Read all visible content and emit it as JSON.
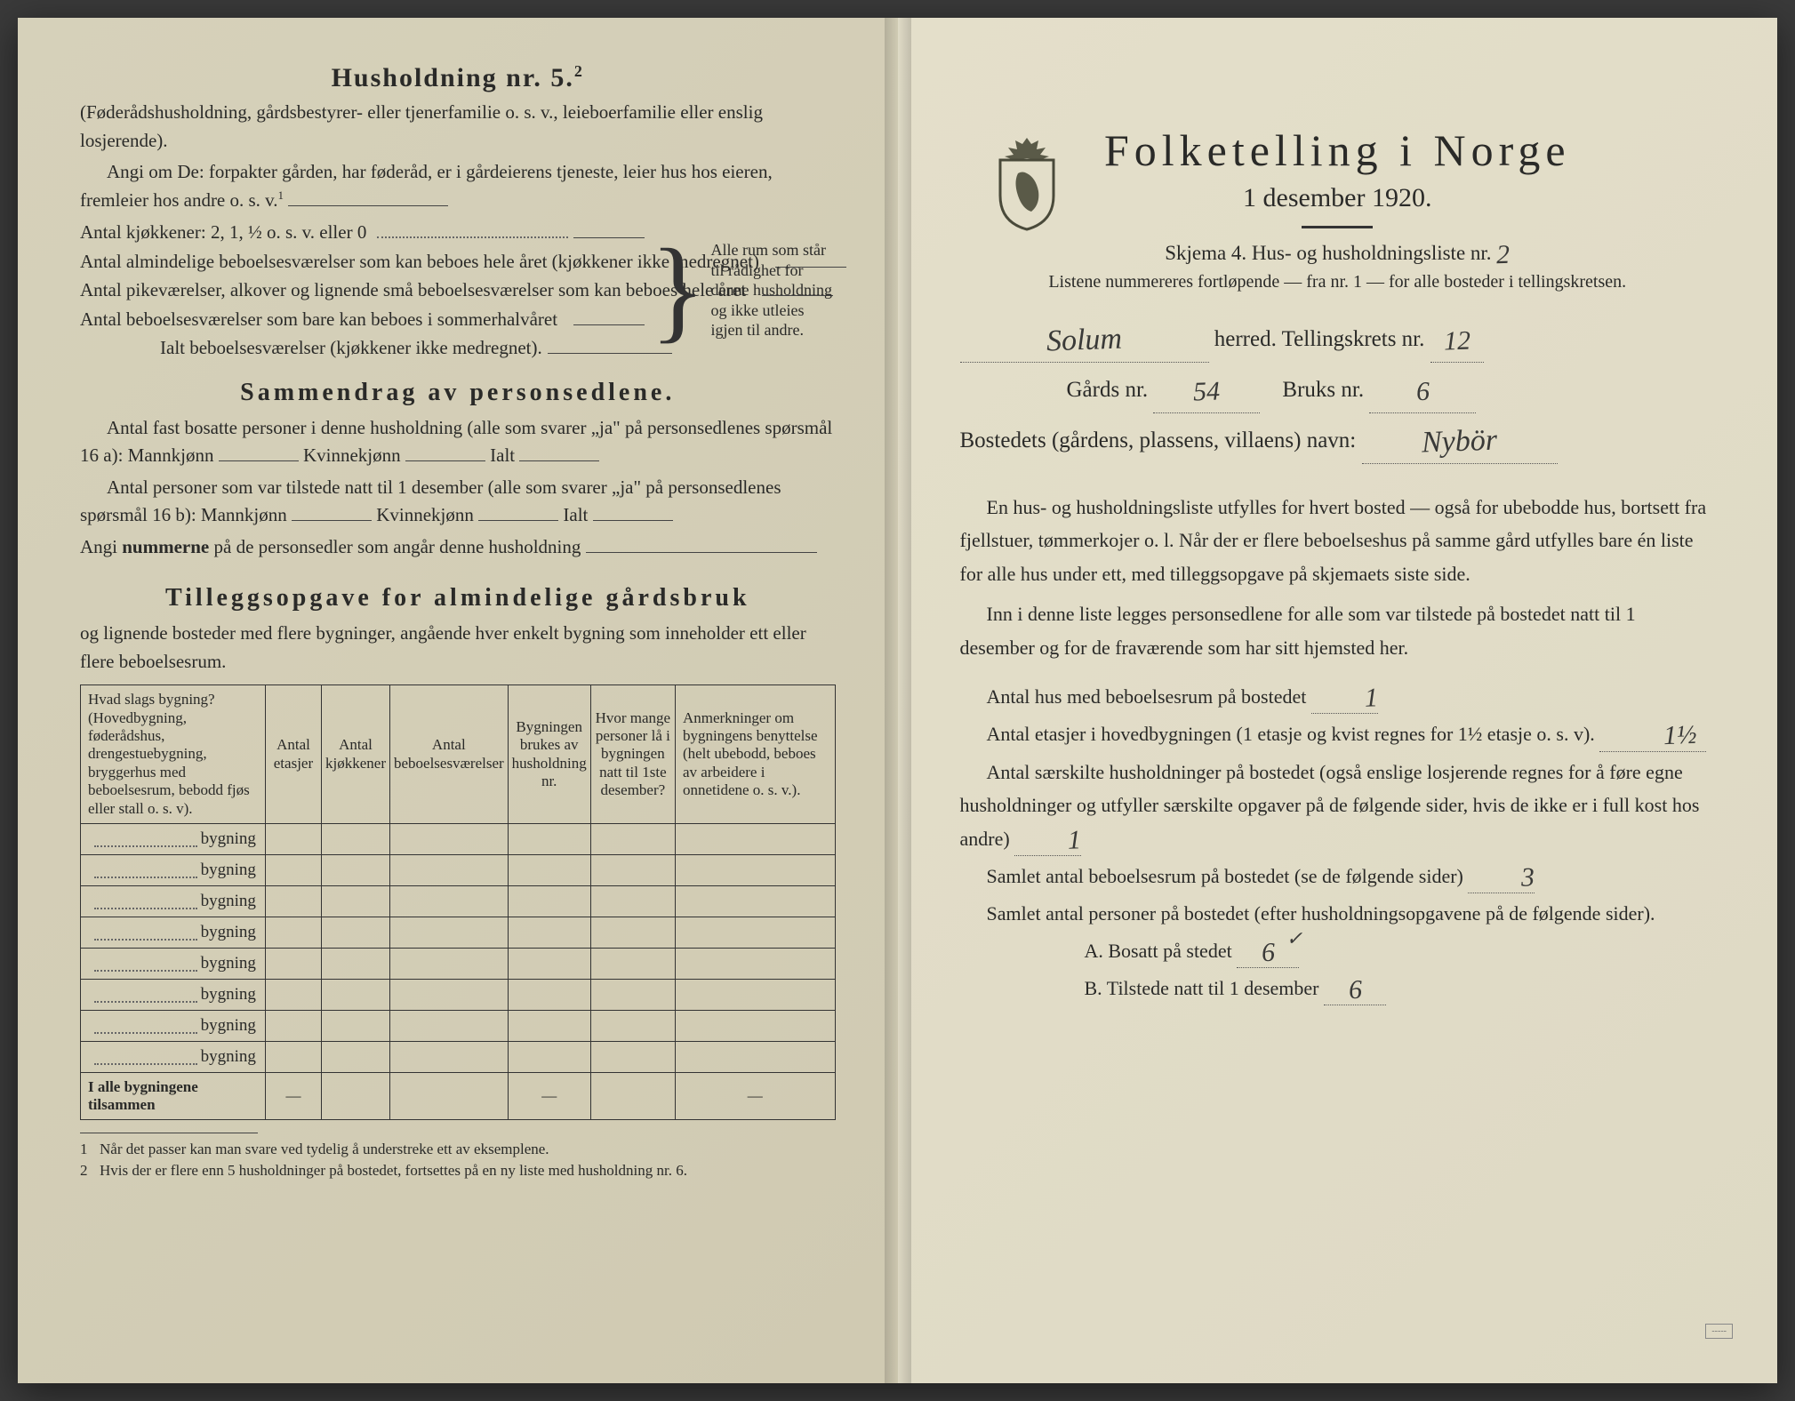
{
  "left": {
    "heading": "Husholdning nr. 5.",
    "heading_sup": "2",
    "intro1": "(Føderådshusholdning, gårdsbestyrer- eller tjenerfamilie o. s. v., leieboerfamilie eller enslig losjerende).",
    "intro2_a": "Angi om De:",
    "intro2_b": "forpakter gården, har føderåd, er i gårdeierens tjeneste, leier hus hos eieren, fremleier hos andre o. s. v.",
    "intro2_sup": "1",
    "kjokken": "Antal kjøkkener: 2, 1, ½ o. s. v. eller 0",
    "rooms": [
      "Antal almindelige beboelsesværelser som kan beboes hele året (kjøkkener ikke medregnet)",
      "Antal pikeværelser, alkover og lignende små beboelsesværelser som kan beboes hele året",
      "Antal beboelsesværelser som bare kan beboes i sommerhalvåret"
    ],
    "ialt": "Ialt beboelsesværelser  (kjøkkener ikke medregnet).",
    "brace_text": "Alle rum som står til rådighet for denne husholdning og ikke utleies igjen til andre.",
    "section2": "Sammendrag av personsedlene.",
    "s2_l1": "Antal fast bosatte personer i denne husholdning (alle som svarer „ja\" på personsedlenes spørsmål 16 a):  Mannkjønn",
    "s2_kv": "Kvinnekjønn",
    "s2_ialt": "Ialt",
    "s2_l2": "Antal personer som var tilstede natt til 1 desember (alle som svarer „ja\" på personsedlenes spørsmål 16 b):  Mannkjønn",
    "s2_l3a": "Angi ",
    "s2_l3b": "nummerne",
    "s2_l3c": " på de personsedler som angår denne husholdning",
    "section3": "Tilleggsopgave for almindelige gårdsbruk",
    "s3_intro": "og lignende bosteder med flere bygninger, angående hver enkelt bygning som inneholder ett eller flere beboelsesrum.",
    "table": {
      "headers": [
        "Hvad slags bygning?\n(Hovedbygning, føderådshus, drengestuebygning, bryggerhus med beboelsesrum, bebodd fjøs eller stall o. s. v).",
        "Antal etasjer",
        "Antal kjøkkener",
        "Antal beboelsesværelser",
        "Bygningen brukes av husholdning nr.",
        "Hvor mange personer lå i bygningen natt til 1ste desember?",
        "Anmerkninger om bygningens benyttelse (helt ubebodd, beboes av arbeidere i onnetidene o. s. v.)."
      ],
      "row_label": "bygning",
      "rows": 8,
      "footer": "I alle bygningene tilsammen",
      "dash": "—"
    },
    "footnote1": "Når det passer kan man svare ved tydelig å understreke ett av eksemplene.",
    "footnote2": "Hvis der er flere enn 5 husholdninger på bostedet, fortsettes på en ny liste med husholdning nr. 6."
  },
  "right": {
    "title": "Folketelling i Norge",
    "subtitle": "1 desember 1920.",
    "skjema_a": "Skjema 4.   Hus- og husholdningsliste nr.",
    "skjema_val": "2",
    "note": "Listene nummereres fortløpende — fra nr. 1 — for alle bosteder i tellingskretsen.",
    "herred_val": "Solum",
    "herred_lbl": "herred.   Tellingskrets nr.",
    "krets_val": "12",
    "gards_lbl": "Gårds nr.",
    "gards_val": "54",
    "bruks_lbl": "Bruks nr.",
    "bruks_val": "6",
    "bosted_lbl": "Bostedets (gårdens, plassens, villaens) navn:",
    "bosted_val": "Nybör",
    "para1": "En hus- og husholdningsliste utfylles for hvert bosted — også for ubebodde hus, bortsett fra fjellstuer, tømmerkojer o. l.  Når der er flere beboelseshus på samme gård utfylles bare én liste for alle hus under ett, med tilleggsopgave på skjemaets siste side.",
    "para2": "Inn i denne liste legges personsedlene for alle som var tilstede på bostedet natt til 1 desember og for de fraværende som har sitt hjemsted her.",
    "q1": "Antal hus med beboelsesrum på bostedet",
    "q1_val": "1",
    "q2a": "Antal etasjer i hovedbygningen (1 etasje og kvist regnes for 1½ etasje o. s. v).",
    "q2_val": "1½",
    "q3": "Antal særskilte husholdninger på bostedet (også enslige losjerende regnes for å føre egne husholdninger og utfyller særskilte opgaver på de følgende sider, hvis de ikke er i full kost hos andre)",
    "q3_val": "1",
    "q4": "Samlet antal beboelsesrum på bostedet (se de følgende sider)",
    "q4_val": "3",
    "q5": "Samlet antal personer på bostedet (efter husholdningsopgavene på de følgende sider).",
    "qA": "A.  Bosatt på stedet",
    "qA_val": "6",
    "qA_check": "✓",
    "qB": "B.  Tilstede natt til 1 desember",
    "qB_val": "6"
  },
  "colors": {
    "text": "#2a2a28",
    "hand": "#3a3a38"
  }
}
